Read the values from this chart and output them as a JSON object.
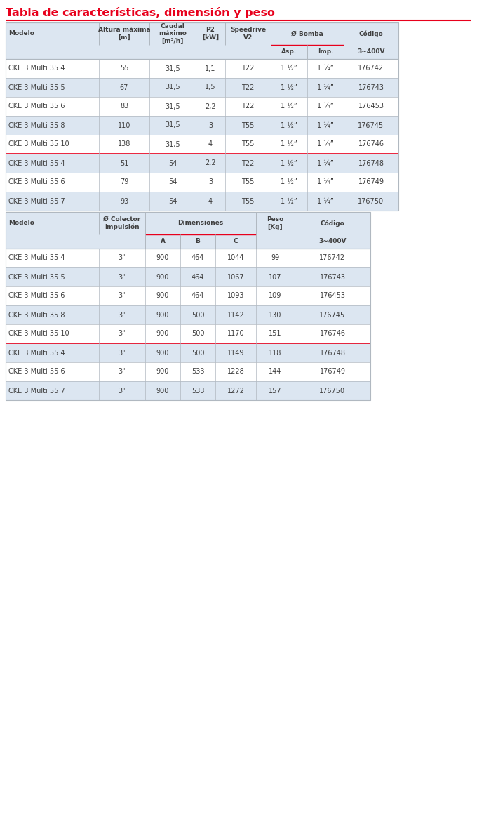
{
  "title": "Tabla de características, dimensión y peso",
  "title_color": "#e8001c",
  "title_fontsize": 11.5,
  "table1": {
    "rows": [
      [
        "CKE 3 Multi 35 4",
        "55",
        "31,5",
        "1,1",
        "T22",
        "1 ½”",
        "1 ¼”",
        "176742"
      ],
      [
        "CKE 3 Multi 35 5",
        "67",
        "31,5",
        "1,5",
        "T22",
        "1 ½”",
        "1 ¼”",
        "176743"
      ],
      [
        "CKE 3 Multi 35 6",
        "83",
        "31,5",
        "2,2",
        "T22",
        "1 ½”",
        "1 ¼”",
        "176453"
      ],
      [
        "CKE 3 Multi 35 8",
        "110",
        "31,5",
        "3",
        "T55",
        "1 ½”",
        "1 ¼”",
        "176745"
      ],
      [
        "CKE 3 Multi 35 10",
        "138",
        "31,5",
        "4",
        "T55",
        "1 ½”",
        "1 ¼”",
        "176746"
      ],
      [
        "CKE 3 Multi 55 4",
        "51",
        "54",
        "2,2",
        "T22",
        "1 ½”",
        "1 ¼”",
        "176748"
      ],
      [
        "CKE 3 Multi 55 6",
        "79",
        "54",
        "3",
        "T55",
        "1 ½”",
        "1 ¼”",
        "176749"
      ],
      [
        "CKE 3 Multi 55 7",
        "93",
        "54",
        "4",
        "T55",
        "1 ½”",
        "1 ¼”",
        "176750"
      ]
    ],
    "shaded_rows": [
      1,
      3,
      5,
      7
    ],
    "group_separator_after": 5
  },
  "table2": {
    "rows": [
      [
        "CKE 3 Multi 35 4",
        "3\"",
        "900",
        "464",
        "1044",
        "99",
        "176742"
      ],
      [
        "CKE 3 Multi 35 5",
        "3\"",
        "900",
        "464",
        "1067",
        "107",
        "176743"
      ],
      [
        "CKE 3 Multi 35 6",
        "3\"",
        "900",
        "464",
        "1093",
        "109",
        "176453"
      ],
      [
        "CKE 3 Multi 35 8",
        "3\"",
        "900",
        "500",
        "1142",
        "130",
        "176745"
      ],
      [
        "CKE 3 Multi 35 10",
        "3\"",
        "900",
        "500",
        "1170",
        "151",
        "176746"
      ],
      [
        "CKE 3 Multi 55 4",
        "3\"",
        "900",
        "500",
        "1149",
        "118",
        "176748"
      ],
      [
        "CKE 3 Multi 55 6",
        "3\"",
        "900",
        "533",
        "1228",
        "144",
        "176749"
      ],
      [
        "CKE 3 Multi 55 7",
        "3\"",
        "900",
        "533",
        "1272",
        "157",
        "176750"
      ]
    ],
    "shaded_rows": [
      1,
      3,
      5,
      7
    ],
    "group_separator_after": 5
  },
  "colors": {
    "header_bg": "#dce6f1",
    "header_text": "#3f3f3f",
    "row_shaded": "#dce6f1",
    "row_normal": "#ffffff",
    "border_gray": "#b0b8c0",
    "red": "#e8001c",
    "text": "#3f3f3f",
    "subheader_line": "#e8001c"
  },
  "bg_color": "#ffffff",
  "diagram_image_path": "target.png"
}
